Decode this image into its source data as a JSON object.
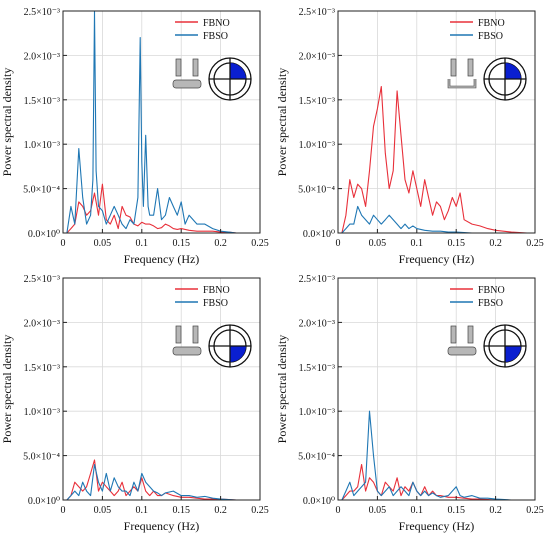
{
  "colors": {
    "FBNO": "#e8303a",
    "FBSO": "#1f77b4",
    "grid": "#d9d9d9",
    "axis": "#222222",
    "icon_fill": "#0a1fd0",
    "icon_gray": "#b7b7b7"
  },
  "chart_data": [
    {
      "type": "line",
      "xlabel": "Frequency (Hz)",
      "ylabel": "Power spectral density",
      "xlim": [
        0,
        0.25
      ],
      "ylim": [
        0,
        0.0025
      ],
      "xticks": [
        0,
        0.05,
        0.1,
        0.15,
        0.2,
        0.25
      ],
      "xtick_labels": [
        "0",
        "0.05",
        "0.1",
        "0.15",
        "0.2",
        "0.25"
      ],
      "ytick_labels": [
        "0.0×10⁰",
        "5.0×10⁻⁴",
        "1.0×10⁻³",
        "1.5×10⁻³",
        "2.0×10⁻³",
        "2.5×10⁻³"
      ],
      "grid": true,
      "legend_position": "top-right",
      "icon": {
        "wall_variant": "open",
        "quadrant": "top-right"
      },
      "series": [
        {
          "name": "FBNO",
          "color": "#e8303a",
          "x": [
            0.005,
            0.01,
            0.015,
            0.02,
            0.025,
            0.03,
            0.035,
            0.04,
            0.045,
            0.05,
            0.055,
            0.06,
            0.065,
            0.07,
            0.075,
            0.08,
            0.085,
            0.09,
            0.095,
            0.1,
            0.105,
            0.11,
            0.115,
            0.12,
            0.125,
            0.13,
            0.135,
            0.14,
            0.145,
            0.15,
            0.16,
            0.17,
            0.18,
            0.19,
            0.2,
            0.21,
            0.22,
            0.24
          ],
          "y": [
            0,
            5e-05,
            0.0001,
            0.00035,
            0.0003,
            0.0002,
            0.00025,
            0.00045,
            0.0002,
            0.00055,
            0.00015,
            0.0001,
            0.0002,
            5e-05,
            0.0003,
            0.0002,
            0.00018,
            0.0001,
            8e-05,
            0.00012,
            0.0001,
            0.0001,
            8e-05,
            5e-05,
            6e-05,
            0.0001,
            8e-05,
            5e-05,
            4e-05,
            5e-05,
            3e-05,
            2e-05,
            2e-05,
            2e-05,
            1e-05,
            1e-05,
            0,
            0
          ]
        },
        {
          "name": "FBSO",
          "color": "#1f77b4",
          "x": [
            0.005,
            0.01,
            0.015,
            0.02,
            0.025,
            0.03,
            0.035,
            0.038,
            0.04,
            0.042,
            0.045,
            0.05,
            0.055,
            0.06,
            0.065,
            0.07,
            0.075,
            0.08,
            0.085,
            0.09,
            0.095,
            0.098,
            0.1,
            0.102,
            0.105,
            0.108,
            0.11,
            0.115,
            0.12,
            0.125,
            0.13,
            0.135,
            0.14,
            0.145,
            0.15,
            0.155,
            0.16,
            0.17,
            0.18,
            0.19,
            0.2,
            0.21,
            0.22,
            0.24
          ],
          "y": [
            0,
            0.0003,
            0.0001,
            0.00095,
            0.0004,
            0.0001,
            0.0002,
            0.0006,
            0.0025,
            0.0007,
            0.0003,
            0.00025,
            0.0001,
            0.0002,
            0.0003,
            0.0002,
            0.0001,
            5e-05,
            0.00015,
            0.0001,
            0.0004,
            0.0022,
            0.0008,
            0.0003,
            0.0011,
            0.0003,
            0.0002,
            0.0002,
            0.0005,
            0.00015,
            0.0002,
            0.0004,
            0.0003,
            0.0002,
            0.00035,
            0.0001,
            0.0002,
            0.0001,
            0.0001,
            5e-05,
            2e-05,
            1e-05,
            0,
            0
          ]
        }
      ]
    },
    {
      "type": "line",
      "xlabel": "Frequency (Hz)",
      "ylabel": "Power spectral density",
      "xlim": [
        0,
        0.25
      ],
      "ylim": [
        0,
        0.0025
      ],
      "xticks": [
        0,
        0.05,
        0.1,
        0.15,
        0.2,
        0.25
      ],
      "xtick_labels": [
        "0",
        "0.05",
        "0.1",
        "0.15",
        "0.2",
        "0.25"
      ],
      "ytick_labels": [
        "0.0×10⁰",
        "5.0×10⁻⁴",
        "1.0×10⁻³",
        "1.5×10⁻³",
        "2.0×10⁻³",
        "2.5×10⁻³"
      ],
      "grid": true,
      "legend_position": "top-right",
      "icon": {
        "wall_variant": "closed",
        "quadrant": "top-right"
      },
      "series": [
        {
          "name": "FBNO",
          "color": "#e8303a",
          "x": [
            0.005,
            0.01,
            0.015,
            0.02,
            0.025,
            0.03,
            0.035,
            0.04,
            0.045,
            0.05,
            0.055,
            0.06,
            0.065,
            0.07,
            0.075,
            0.08,
            0.085,
            0.09,
            0.095,
            0.1,
            0.105,
            0.11,
            0.115,
            0.12,
            0.125,
            0.13,
            0.135,
            0.14,
            0.145,
            0.15,
            0.155,
            0.16,
            0.17,
            0.18,
            0.19,
            0.2,
            0.22,
            0.24
          ],
          "y": [
            0,
            0.0002,
            0.0006,
            0.0004,
            0.00055,
            0.0005,
            0.0003,
            0.0007,
            0.0012,
            0.0014,
            0.00165,
            0.0009,
            0.0005,
            0.0007,
            0.0016,
            0.0011,
            0.0006,
            0.00045,
            0.0007,
            0.0005,
            0.0003,
            0.0006,
            0.0004,
            0.0002,
            0.00035,
            0.0003,
            0.00015,
            0.00025,
            0.0004,
            0.0003,
            0.00045,
            0.00015,
            0.0001,
            8e-05,
            5e-05,
            3e-05,
            1e-05,
            0
          ]
        },
        {
          "name": "FBSO",
          "color": "#1f77b4",
          "x": [
            0.005,
            0.01,
            0.015,
            0.02,
            0.025,
            0.03,
            0.035,
            0.04,
            0.045,
            0.05,
            0.055,
            0.06,
            0.065,
            0.07,
            0.075,
            0.08,
            0.085,
            0.09,
            0.095,
            0.1,
            0.11,
            0.12,
            0.13,
            0.14,
            0.15,
            0.17,
            0.2,
            0.24
          ],
          "y": [
            0,
            5e-05,
            0.0001,
            0.0001,
            0.0003,
            0.0002,
            0.00015,
            0.0001,
            0.0002,
            0.00015,
            0.0001,
            0.00015,
            0.0002,
            0.00015,
            0.0001,
            5e-05,
            0.0001,
            5e-05,
            8e-05,
            5e-05,
            3e-05,
            2e-05,
            2e-05,
            1e-05,
            1e-05,
            0,
            0,
            0
          ]
        }
      ]
    },
    {
      "type": "line",
      "xlabel": "Frequency (Hz)",
      "ylabel": "Power spectral density",
      "xlim": [
        0,
        0.25
      ],
      "ylim": [
        0,
        0.0025
      ],
      "xticks": [
        0,
        0.05,
        0.1,
        0.15,
        0.2,
        0.25
      ],
      "xtick_labels": [
        "0",
        "0.05",
        "0.1",
        "0.15",
        "0.2",
        "0.25"
      ],
      "ytick_labels": [
        "0.0×10⁰",
        "5.0×10⁻⁴",
        "1.0×10⁻³",
        "1.5×10⁻³",
        "2.0×10⁻³",
        "2.5×10⁻³"
      ],
      "grid": true,
      "legend_position": "top-right",
      "icon": {
        "wall_variant": "open",
        "quadrant": "bottom-right"
      },
      "series": [
        {
          "name": "FBNO",
          "color": "#e8303a",
          "x": [
            0.005,
            0.01,
            0.015,
            0.02,
            0.025,
            0.03,
            0.035,
            0.04,
            0.045,
            0.05,
            0.055,
            0.06,
            0.065,
            0.07,
            0.075,
            0.08,
            0.085,
            0.09,
            0.095,
            0.1,
            0.105,
            0.11,
            0.115,
            0.12,
            0.125,
            0.13,
            0.14,
            0.15,
            0.16,
            0.17,
            0.18,
            0.2,
            0.22,
            0.24
          ],
          "y": [
            0,
            5e-05,
            0.0002,
            0.00015,
            0.0001,
            0.00015,
            0.0003,
            0.00045,
            0.0001,
            0.0002,
            0.00015,
            0.0001,
            5e-05,
            0.0001,
            0.0002,
            5e-05,
            0.0001,
            0.00015,
            0.0001,
            0.00025,
            0.0001,
            5e-05,
            0.0001,
            5e-05,
            5e-05,
            8e-05,
            5e-05,
            3e-05,
            3e-05,
            2e-05,
            1e-05,
            1e-05,
            0,
            0
          ]
        },
        {
          "name": "FBSO",
          "color": "#1f77b4",
          "x": [
            0.005,
            0.01,
            0.015,
            0.02,
            0.025,
            0.03,
            0.035,
            0.04,
            0.045,
            0.05,
            0.055,
            0.06,
            0.065,
            0.07,
            0.075,
            0.08,
            0.085,
            0.09,
            0.095,
            0.1,
            0.105,
            0.11,
            0.115,
            0.12,
            0.125,
            0.13,
            0.14,
            0.15,
            0.16,
            0.17,
            0.18,
            0.19,
            0.2,
            0.22,
            0.24
          ],
          "y": [
            0,
            5e-05,
            0.0001,
            5e-05,
            0.0002,
            0.0001,
            5e-05,
            0.0004,
            0.0002,
            0.0001,
            0.0003,
            0.0001,
            0.00025,
            0.00015,
            0.0001,
            0.0001,
            5e-05,
            0.0002,
            0.0001,
            0.0003,
            0.0002,
            0.00015,
            0.0001,
            8e-05,
            5e-05,
            8e-05,
            0.0001,
            5e-05,
            5e-05,
            3e-05,
            4e-05,
            2e-05,
            1e-05,
            0,
            0
          ]
        }
      ]
    },
    {
      "type": "line",
      "xlabel": "Frequency (Hz)",
      "ylabel": "Power spectral density",
      "xlim": [
        0,
        0.25
      ],
      "ylim": [
        0,
        0.0025
      ],
      "xticks": [
        0,
        0.05,
        0.1,
        0.15,
        0.2,
        0.25
      ],
      "xtick_labels": [
        "0",
        "0.05",
        "0.1",
        "0.15",
        "0.2",
        "0.25"
      ],
      "ytick_labels": [
        "0.0×10⁰",
        "5.0×10⁻⁴",
        "1.0×10⁻³",
        "1.5×10⁻³",
        "2.0×10⁻³",
        "2.5×10⁻³"
      ],
      "grid": true,
      "legend_position": "top-right",
      "icon": {
        "wall_variant": "open",
        "quadrant": "bottom-right"
      },
      "series": [
        {
          "name": "FBNO",
          "color": "#e8303a",
          "x": [
            0.005,
            0.01,
            0.015,
            0.02,
            0.025,
            0.03,
            0.035,
            0.04,
            0.045,
            0.05,
            0.055,
            0.06,
            0.065,
            0.07,
            0.075,
            0.08,
            0.085,
            0.09,
            0.095,
            0.1,
            0.105,
            0.11,
            0.115,
            0.12,
            0.125,
            0.13,
            0.14,
            0.15,
            0.16,
            0.17,
            0.18,
            0.2,
            0.22,
            0.24
          ],
          "y": [
            0,
            5e-05,
            0.0001,
            0.0001,
            0.00015,
            0.0004,
            0.0001,
            0.00025,
            0.0002,
            0.0001,
            5e-05,
            0.0002,
            0.00015,
            0.0001,
            0.00025,
            5e-05,
            0.00015,
            0.0001,
            0.0002,
            0.0001,
            5e-05,
            0.00015,
            5e-05,
            0.0001,
            5e-05,
            5e-05,
            3e-05,
            3e-05,
            2e-05,
            1e-05,
            1e-05,
            0,
            0,
            0
          ]
        },
        {
          "name": "FBSO",
          "color": "#1f77b4",
          "x": [
            0.005,
            0.01,
            0.015,
            0.02,
            0.025,
            0.03,
            0.035,
            0.04,
            0.045,
            0.05,
            0.055,
            0.06,
            0.065,
            0.07,
            0.075,
            0.08,
            0.085,
            0.09,
            0.095,
            0.1,
            0.105,
            0.11,
            0.115,
            0.12,
            0.125,
            0.13,
            0.14,
            0.15,
            0.155,
            0.16,
            0.17,
            0.18,
            0.19,
            0.2,
            0.22,
            0.24
          ],
          "y": [
            0,
            0.0001,
            0.0002,
            5e-05,
            0.0001,
            0.00015,
            0.0002,
            0.001,
            0.0005,
            0.0001,
            5e-05,
            0.0001,
            0.00015,
            5e-05,
            0.0001,
            0.00015,
            0.0001,
            5e-05,
            0.0002,
            0.0001,
            5e-05,
            0.0001,
            5e-05,
            8e-05,
            5e-05,
            3e-05,
            5e-05,
            0.00015,
            5e-05,
            3e-05,
            5e-05,
            2e-05,
            2e-05,
            1e-05,
            0,
            0
          ]
        }
      ]
    }
  ]
}
